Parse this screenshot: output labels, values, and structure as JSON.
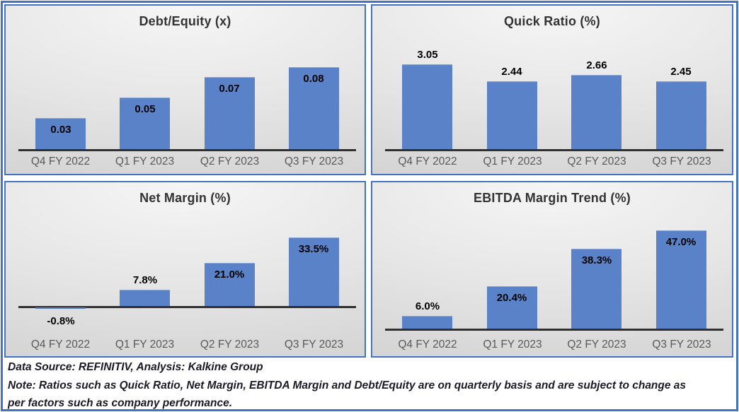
{
  "colors": {
    "bar_fill": "#5A82C8",
    "panel_border": "#4472C4",
    "frame_border": "#4472C4",
    "axis_line": "#303030",
    "title_text": "#333333",
    "category_text": "#595959",
    "data_label_text": "#000000",
    "footer_text": "#1a1a26",
    "panel_bg_light": "#f6f6f6",
    "panel_bg_dark": "#d2d2d2"
  },
  "chart_data": [
    {
      "type": "bar",
      "title": "Debt/Equity (x)",
      "categories": [
        "Q4 FY 2022",
        "Q1 FY 2023",
        "Q2 FY 2023",
        "Q3 FY 2023"
      ],
      "values": [
        0.03,
        0.05,
        0.07,
        0.08
      ],
      "labels": [
        "0.03",
        "0.05",
        "0.07",
        "0.08"
      ],
      "label_positions": [
        "inside",
        "inside",
        "inside",
        "inside"
      ],
      "xlabel": "",
      "ylabel": "",
      "ylim": [
        0,
        0.11
      ],
      "grid": false,
      "legend": false
    },
    {
      "type": "bar",
      "title": "Quick Ratio (%)",
      "categories": [
        "Q4 FY 2022",
        "Q1 FY 2023",
        "Q2 FY 2023",
        "Q3 FY 2023"
      ],
      "values": [
        3.05,
        2.44,
        2.66,
        2.45
      ],
      "labels": [
        "3.05",
        "2.44",
        "2.66",
        "2.45"
      ],
      "label_positions": [
        "above",
        "above",
        "above",
        "above"
      ],
      "xlabel": "",
      "ylabel": "",
      "ylim": [
        0,
        4.1
      ],
      "grid": false,
      "legend": false
    },
    {
      "type": "bar",
      "title": "Net Margin (%)",
      "categories": [
        "Q4 FY 2022",
        "Q1 FY 2023",
        "Q2 FY 2023",
        "Q3 FY 2023"
      ],
      "values": [
        -0.8,
        7.8,
        21.0,
        33.5
      ],
      "labels": [
        "-0.8%",
        "7.8%",
        "21.0%",
        "33.5%"
      ],
      "label_positions": [
        "below",
        "above",
        "inside",
        "inside"
      ],
      "xlabel": "",
      "ylabel": "",
      "ylim": [
        -5,
        48
      ],
      "grid": false,
      "legend": false
    },
    {
      "type": "bar",
      "title": "EBITDA Margin Trend (%)",
      "categories": [
        "Q4 FY 2022",
        "Q1 FY 2023",
        "Q2 FY 2023",
        "Q3 FY 2023"
      ],
      "values": [
        6.0,
        20.4,
        38.3,
        47.0
      ],
      "labels": [
        "6.0%",
        "20.4%",
        "38.3%",
        "47.0%"
      ],
      "label_positions": [
        "above",
        "inside",
        "inside",
        "inside"
      ],
      "xlabel": "",
      "ylabel": "",
      "ylim": [
        0,
        51
      ],
      "grid": false,
      "legend": false
    }
  ],
  "footer": {
    "source_line": "Data Source: REFINITIV, Analysis: Kalkine Group",
    "note_line1": "Note: Ratios such as Quick Ratio, Net Margin, EBITDA Margin and Debt/Equity are on quarterly basis and are subject to change as",
    "note_line2": "per factors such as company performance."
  }
}
